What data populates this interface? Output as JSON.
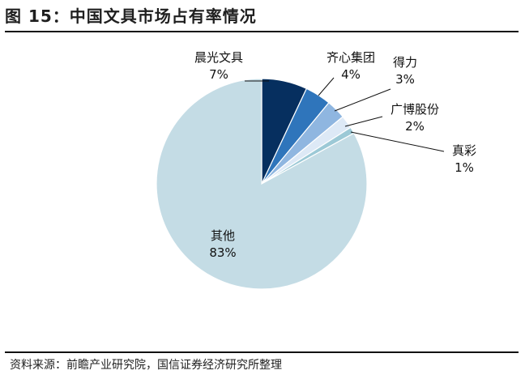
{
  "header": {
    "title": "图 15：中国文具市场占有率情况"
  },
  "footer": {
    "source": "资料来源：前瞻产业研究院，国信证券经济研究所整理"
  },
  "chart_data": {
    "type": "pie",
    "title": "",
    "slices": [
      {
        "label": "晨光文具",
        "value": 7,
        "value_label": "7%",
        "color": "#062f5f"
      },
      {
        "label": "齐心集团",
        "value": 4,
        "value_label": "4%",
        "color": "#2f75bb"
      },
      {
        "label": "得力",
        "value": 3,
        "value_label": "3%",
        "color": "#8fb6e0"
      },
      {
        "label": "广博股份",
        "value": 2,
        "value_label": "2%",
        "color": "#dde9f6"
      },
      {
        "label": "真彩",
        "value": 1,
        "value_label": "1%",
        "color": "#9cc9d6"
      },
      {
        "label": "其他",
        "value": 83,
        "value_label": "83%",
        "color": "#c4dce5"
      }
    ]
  }
}
